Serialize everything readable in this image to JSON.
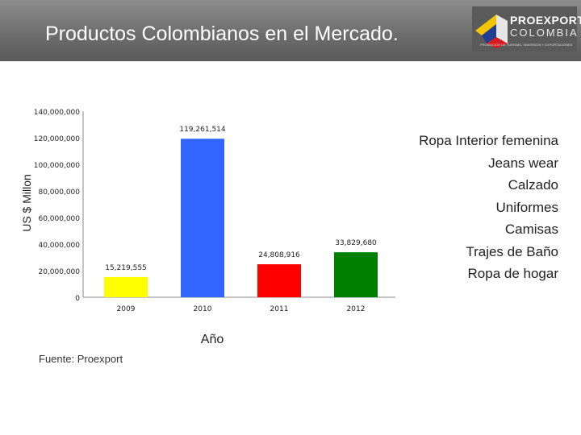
{
  "header": {
    "title": "Productos Colombianos en el Mercado.",
    "logo_word1": "PROEXPORT",
    "logo_word2": "COLOMBIA",
    "logo_tagline": "PROMOCIÓN DE TURISMO, INVERSIÓN Y EXPORTACIONES"
  },
  "legend": {
    "items": [
      "Ropa Interior femenina",
      "Jeans wear",
      "Calzado",
      "Uniformes",
      "Camisas",
      "Trajes de Baño",
      "Ropa de hogar"
    ]
  },
  "source": "Fuente: Proexport",
  "colors": {
    "header": "#6e6e6e",
    "bar_2009": "#ffff00",
    "bar_2010": "#3366ff",
    "bar_2011": "#ff0000",
    "bar_2012": "#008000"
  },
  "chart_data": {
    "type": "bar",
    "categories": [
      "2009",
      "2010",
      "2011",
      "2012"
    ],
    "values": [
      15219555,
      119261514,
      24808916,
      33829680
    ],
    "value_labels": [
      "15,219,555",
      "119,261,514",
      "24,808,916",
      "33,829,680"
    ],
    "bar_colors": [
      "#ffff00",
      "#3366ff",
      "#ff0000",
      "#008000"
    ],
    "y_ticks": [
      0,
      20000000,
      40000000,
      60000000,
      80000000,
      100000000,
      120000000,
      140000000
    ],
    "y_tick_labels": [
      "0",
      "20,000,000",
      "40,000,000",
      "60,000,000",
      "80,000,000",
      "100,000,000",
      "120,000,000",
      "140,000,000"
    ],
    "xlabel": "Año",
    "ylabel": "US $ Millon",
    "ylim": [
      0,
      140000000
    ],
    "grid": false,
    "legend_position": "right"
  }
}
